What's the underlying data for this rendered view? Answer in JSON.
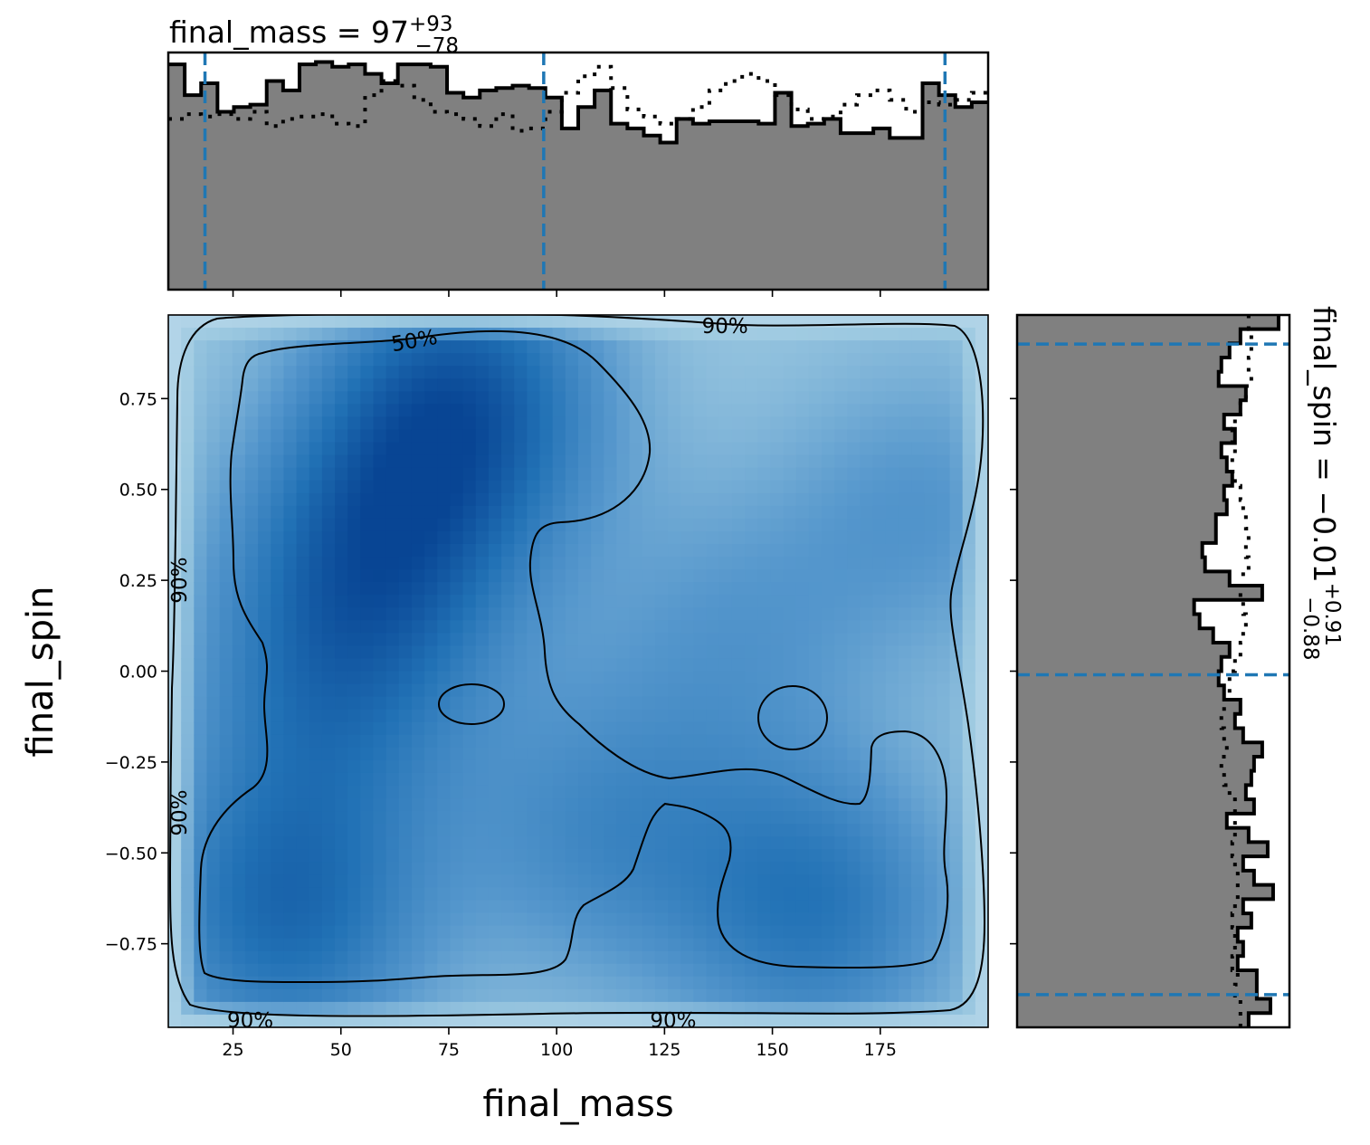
{
  "chart_data": [
    {
      "type": "heatmap",
      "xlabel": "final_mass",
      "ylabel": "final_spin",
      "xlim": [
        10,
        200
      ],
      "ylim": [
        -0.98,
        0.98
      ],
      "xticks": [
        25,
        50,
        75,
        100,
        125,
        150,
        175
      ],
      "xtick_labels": [
        "25",
        "50",
        "75",
        "100",
        "125",
        "150",
        "175"
      ],
      "yticks": [
        0.75,
        0.5,
        0.25,
        0.0,
        -0.25,
        -0.5,
        -0.75
      ],
      "ytick_labels": [
        "0.75",
        "0.50",
        "0.25",
        "0.00",
        "−0.25",
        "−0.50",
        "−0.75"
      ],
      "colormap": "Blues",
      "density_peaks": [
        {
          "x": 78,
          "y": 0.75,
          "w": 1.0
        },
        {
          "x": 58,
          "y": 0.32,
          "w": 0.85
        },
        {
          "x": 37,
          "y": -0.68,
          "w": 0.85
        },
        {
          "x": 160,
          "y": -0.65,
          "w": 0.75
        },
        {
          "x": 45,
          "y": -0.1,
          "w": 0.55
        },
        {
          "x": 140,
          "y": 0.1,
          "w": 0.35
        },
        {
          "x": 185,
          "y": 0.45,
          "w": 0.4
        },
        {
          "x": 110,
          "y": -0.45,
          "w": 0.5
        }
      ],
      "contour_labels": [
        {
          "text": "50%",
          "x": 67,
          "y": 0.91
        },
        {
          "text": "90%",
          "x": 139,
          "y": 0.95
        },
        {
          "text": "90%",
          "x": 12.5,
          "y": 0.25
        },
        {
          "text": "90%",
          "x": 12.5,
          "y": -0.39
        },
        {
          "text": "90%",
          "x": 29,
          "y": -0.96
        },
        {
          "text": "90%",
          "x": 127,
          "y": -0.96
        }
      ]
    },
    {
      "type": "area",
      "title": "final_mass = 97",
      "title_sup": "+93",
      "title_sub": "−78",
      "quantiles": [
        18.5,
        97,
        190
      ],
      "xlim": [
        10,
        200
      ],
      "bin_edges": [
        10,
        13.8,
        17.6,
        21.4,
        25.2,
        29,
        32.8,
        36.6,
        40.4,
        44.2,
        48,
        51.8,
        55.6,
        59.4,
        63.2,
        67,
        70.8,
        74.6,
        78.4,
        82.2,
        86,
        89.8,
        93.6,
        97.4,
        101.2,
        105,
        108.8,
        112.6,
        116.4,
        120.2,
        124,
        127.8,
        131.6,
        135.4,
        139.2,
        143,
        146.8,
        150.6,
        154.4,
        158.2,
        162,
        165.8,
        169.6,
        173.4,
        177.2,
        181,
        184.8,
        188.6,
        192.4,
        196.2,
        200
      ],
      "counts": [
        0.95,
        0.82,
        0.87,
        0.75,
        0.77,
        0.78,
        0.88,
        0.84,
        0.95,
        0.96,
        0.94,
        0.95,
        0.91,
        0.87,
        0.95,
        0.95,
        0.94,
        0.83,
        0.81,
        0.84,
        0.85,
        0.86,
        0.85,
        0.81,
        0.68,
        0.77,
        0.84,
        0.7,
        0.68,
        0.65,
        0.62,
        0.72,
        0.7,
        0.71,
        0.71,
        0.71,
        0.7,
        0.83,
        0.69,
        0.7,
        0.72,
        0.66,
        0.66,
        0.68,
        0.64,
        0.64,
        0.87,
        0.82,
        0.77,
        0.79
      ],
      "reference_counts": [
        0.72,
        0.74,
        0.73,
        0.74,
        0.72,
        0.75,
        0.69,
        0.72,
        0.73,
        0.74,
        0.7,
        0.69,
        0.82,
        0.88,
        0.86,
        0.8,
        0.75,
        0.74,
        0.72,
        0.69,
        0.74,
        0.67,
        0.68,
        0.75,
        0.83,
        0.9,
        0.94,
        0.85,
        0.76,
        0.73,
        0.7,
        0.72,
        0.77,
        0.84,
        0.88,
        0.91,
        0.88,
        0.82,
        0.76,
        0.72,
        0.73,
        0.78,
        0.82,
        0.84,
        0.8,
        0.75,
        0.79,
        0.78,
        0.8,
        0.83
      ],
      "fill_color": "#808080",
      "quantile_color": "#1f77b4"
    },
    {
      "type": "area",
      "title": "final_spin = −0.01",
      "title_sup": "+0.91",
      "title_sub": "−0.88",
      "orientation": "horizontal",
      "quantiles": [
        -0.89,
        -0.01,
        0.9
      ],
      "ylim": [
        -0.98,
        0.98
      ],
      "bin_edges": [
        -0.98,
        -0.9408,
        -0.9016,
        -0.8624,
        -0.8232,
        -0.784,
        -0.7448,
        -0.7056,
        -0.6664,
        -0.6272,
        -0.588,
        -0.5488,
        -0.5096,
        -0.4704,
        -0.4312,
        -0.392,
        -0.3528,
        -0.3136,
        -0.2744,
        -0.2352,
        -0.196,
        -0.1568,
        -0.1176,
        -0.0784,
        -0.0392,
        0,
        0.0392,
        0.0784,
        0.1176,
        0.1568,
        0.196,
        0.2352,
        0.2744,
        0.3136,
        0.3528,
        0.3924,
        0.4316,
        0.4708,
        0.51,
        0.5492,
        0.5884,
        0.6276,
        0.6668,
        0.706,
        0.7452,
        0.7844,
        0.8236,
        0.8628,
        0.902,
        0.9412,
        0.98
      ],
      "counts": [
        0.85,
        0.93,
        0.88,
        0.88,
        0.81,
        0.83,
        0.81,
        0.86,
        0.83,
        0.94,
        0.87,
        0.83,
        0.92,
        0.85,
        0.77,
        0.87,
        0.84,
        0.86,
        0.87,
        0.9,
        0.83,
        0.8,
        0.82,
        0.76,
        0.74,
        0.75,
        0.78,
        0.72,
        0.67,
        0.65,
        0.9,
        0.78,
        0.69,
        0.68,
        0.73,
        0.73,
        0.77,
        0.76,
        0.79,
        0.77,
        0.75,
        0.8,
        0.76,
        0.82,
        0.84,
        0.74,
        0.75,
        0.78,
        0.82,
        0.96
      ],
      "reference_counts": [
        0.82,
        0.82,
        0.8,
        0.81,
        0.79,
        0.8,
        0.8,
        0.79,
        0.8,
        0.81,
        0.81,
        0.8,
        0.79,
        0.8,
        0.8,
        0.8,
        0.78,
        0.76,
        0.75,
        0.77,
        0.76,
        0.75,
        0.76,
        0.78,
        0.78,
        0.8,
        0.82,
        0.83,
        0.84,
        0.83,
        0.82,
        0.83,
        0.85,
        0.84,
        0.85,
        0.84,
        0.83,
        0.82,
        0.8,
        0.79,
        0.8,
        0.79,
        0.8,
        0.82,
        0.84,
        0.86,
        0.85,
        0.86,
        0.86,
        0.85
      ],
      "fill_color": "#808080",
      "quantile_color": "#1f77b4"
    }
  ]
}
